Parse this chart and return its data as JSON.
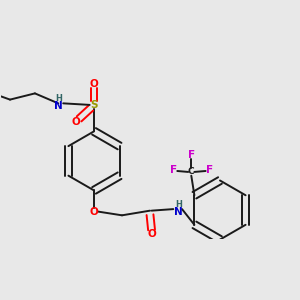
{
  "bg_color": "#e8e8e8",
  "bond_color": "#1a1a1a",
  "colors": {
    "N": "#0000cc",
    "O": "#ff0000",
    "S": "#999900",
    "F": "#cc00cc",
    "H_on_N": "#336666",
    "C": "#1a1a1a"
  },
  "figsize": [
    3.0,
    3.0
  ],
  "dpi": 100
}
